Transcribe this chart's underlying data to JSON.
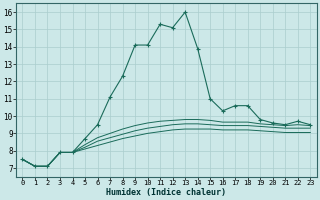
{
  "xlabel": "Humidex (Indice chaleur)",
  "background_color": "#cce8e8",
  "line_color": "#1a6b5a",
  "grid_color": "#aacece",
  "xlim": [
    -0.5,
    23.5
  ],
  "ylim": [
    6.5,
    16.5
  ],
  "yticks": [
    7,
    8,
    9,
    10,
    11,
    12,
    13,
    14,
    15,
    16
  ],
  "xticks": [
    0,
    1,
    2,
    3,
    4,
    5,
    6,
    7,
    8,
    9,
    10,
    11,
    12,
    13,
    14,
    15,
    16,
    17,
    18,
    19,
    20,
    21,
    22,
    23
  ],
  "xtick_labels": [
    "0",
    "1",
    "2",
    "3",
    "4",
    "5",
    "6",
    "7",
    "8",
    "9",
    "10",
    "11",
    "12",
    "13",
    "14",
    "15",
    "16",
    "17",
    "18",
    "19",
    "20",
    "21",
    "22",
    "23"
  ],
  "series_main": [
    7.5,
    7.1,
    7.1,
    7.9,
    7.9,
    8.7,
    9.5,
    11.1,
    12.3,
    14.1,
    14.1,
    15.3,
    15.1,
    16.0,
    13.9,
    11.0,
    10.3,
    10.6,
    10.6,
    9.8,
    9.6,
    9.5,
    9.7,
    9.5
  ],
  "series_low": [
    7.5,
    7.1,
    7.1,
    7.9,
    7.9,
    8.1,
    8.3,
    8.5,
    8.7,
    8.85,
    9.0,
    9.1,
    9.2,
    9.25,
    9.25,
    9.25,
    9.2,
    9.2,
    9.2,
    9.15,
    9.1,
    9.05,
    9.05,
    9.05
  ],
  "series_mid": [
    7.5,
    7.1,
    7.1,
    7.9,
    7.9,
    8.2,
    8.55,
    8.75,
    8.95,
    9.15,
    9.3,
    9.4,
    9.5,
    9.55,
    9.55,
    9.5,
    9.45,
    9.45,
    9.45,
    9.4,
    9.35,
    9.3,
    9.3,
    9.3
  ],
  "series_high": [
    7.5,
    7.1,
    7.1,
    7.9,
    7.9,
    8.35,
    8.75,
    9.0,
    9.25,
    9.45,
    9.6,
    9.7,
    9.75,
    9.8,
    9.8,
    9.75,
    9.65,
    9.65,
    9.65,
    9.55,
    9.5,
    9.45,
    9.5,
    9.45
  ]
}
